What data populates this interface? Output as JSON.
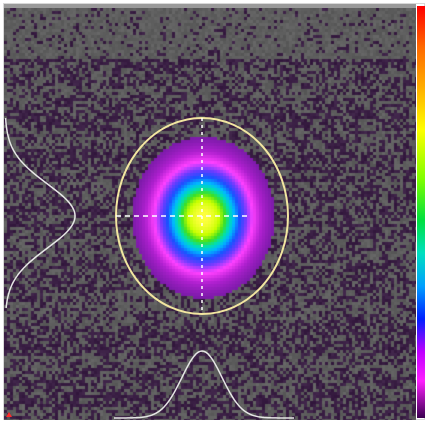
{
  "beam_profile": {
    "palette": [
      "#3a1a4a",
      "#6a1aa0",
      "#9a20c8",
      "#ff40ff",
      "#e040ff",
      "#4040ff",
      "#00c0ff",
      "#00e0a0",
      "#40e020",
      "#c0ff00",
      "#ffff00",
      "#ffc000",
      "#ff8000",
      "#ff2000"
    ],
    "background_colors": {
      "noise_low": "#3a1f44",
      "noise_high": "#5e5e5e"
    },
    "ellipse_color": "#f2e6a0",
    "crosshair_color": "#ffffff",
    "profile_curve_color": "#e6e6e6",
    "origin_marker_color": "#ff2a2a",
    "colorbar_stops": [
      {
        "pos": 0.0,
        "color": "#ff0000"
      },
      {
        "pos": 0.1,
        "color": "#ff6a00"
      },
      {
        "pos": 0.2,
        "color": "#ffb000"
      },
      {
        "pos": 0.3,
        "color": "#ffff00"
      },
      {
        "pos": 0.42,
        "color": "#80ff00"
      },
      {
        "pos": 0.52,
        "color": "#00e040"
      },
      {
        "pos": 0.6,
        "color": "#00e0c0"
      },
      {
        "pos": 0.68,
        "color": "#00a0ff"
      },
      {
        "pos": 0.76,
        "color": "#0020ff"
      },
      {
        "pos": 0.84,
        "color": "#c000ff"
      },
      {
        "pos": 0.91,
        "color": "#ff20ff"
      },
      {
        "pos": 1.0,
        "color": "#3a0050"
      }
    ]
  }
}
